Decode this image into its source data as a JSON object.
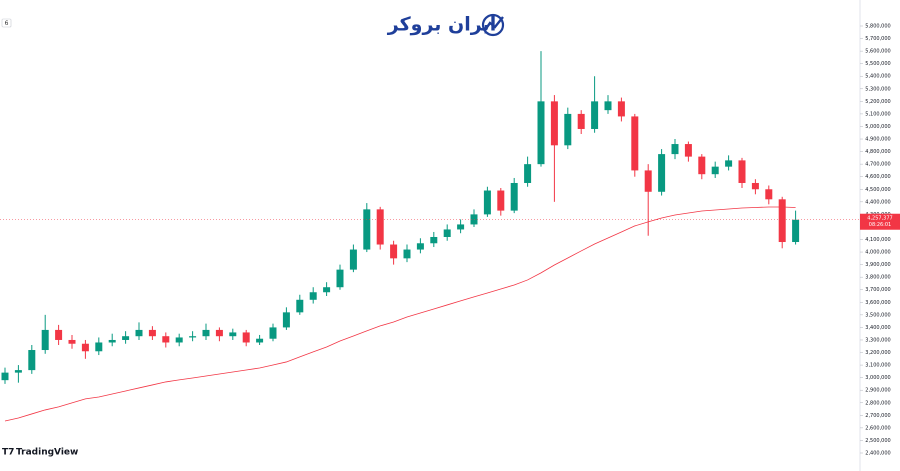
{
  "chart_data": {
    "type": "candlestick",
    "brand": "ایران بروکر",
    "watermark": "TradingView",
    "badge": "6",
    "ylim": [
      2400000,
      5800000
    ],
    "yticks": [
      {
        "value": 2400000,
        "label": "2,400,000"
      },
      {
        "value": 2500000,
        "label": "2,500,000"
      },
      {
        "value": 2600000,
        "label": "2,600,000"
      },
      {
        "value": 2700000,
        "label": "2,700,000"
      },
      {
        "value": 2800000,
        "label": "2,800,000"
      },
      {
        "value": 2900000,
        "label": "2,900,000"
      },
      {
        "value": 3000000,
        "label": "3,000,000"
      },
      {
        "value": 3100000,
        "label": "3,100,000"
      },
      {
        "value": 3200000,
        "label": "3,200,000"
      },
      {
        "value": 3300000,
        "label": "3,300,000"
      },
      {
        "value": 3400000,
        "label": "3,400,000"
      },
      {
        "value": 3500000,
        "label": "3,500,000"
      },
      {
        "value": 3600000,
        "label": "3,600,000"
      },
      {
        "value": 3700000,
        "label": "3,700,000"
      },
      {
        "value": 3800000,
        "label": "3,800,000"
      },
      {
        "value": 3900000,
        "label": "3,900,000"
      },
      {
        "value": 4000000,
        "label": "4,000,000"
      },
      {
        "value": 4100000,
        "label": "4,100,000"
      },
      {
        "value": 4200000,
        "label": "4,200,000"
      },
      {
        "value": 4300000,
        "label": "4,300,000"
      },
      {
        "value": 4400000,
        "label": "4,400,000"
      },
      {
        "value": 4500000,
        "label": "4,500,000"
      },
      {
        "value": 4600000,
        "label": "4,600,000"
      },
      {
        "value": 4700000,
        "label": "4,700,000"
      },
      {
        "value": 4800000,
        "label": "4,800,000"
      },
      {
        "value": 4900000,
        "label": "4,900,000"
      },
      {
        "value": 5000000,
        "label": "5,000,000"
      },
      {
        "value": 5100000,
        "label": "5,100,000"
      },
      {
        "value": 5200000,
        "label": "5,200,000"
      },
      {
        "value": 5300000,
        "label": "5,300,000"
      },
      {
        "value": 5400000,
        "label": "5,400,000"
      },
      {
        "value": 5500000,
        "label": "5,500,000"
      },
      {
        "value": 5600000,
        "label": "5,600,000"
      },
      {
        "value": 5700000,
        "label": "5,700,000"
      },
      {
        "value": 5800000,
        "label": "5,800,000"
      }
    ],
    "last_price": {
      "value": 4257377,
      "label": "4,257,377",
      "countdown": "08:26:01"
    },
    "series": [
      {
        "type": "candlestick",
        "color_up": "#089981",
        "color_down": "#f23645",
        "open": [
          2980000,
          3040000,
          3060000,
          3220000,
          3380000,
          3300000,
          3270000,
          3210000,
          3280000,
          3300000,
          3330000,
          3380000,
          3330000,
          3280000,
          3320000,
          3330000,
          3380000,
          3330000,
          3360000,
          3280000,
          3310000,
          3400000,
          3520000,
          3620000,
          3680000,
          3720000,
          3860000,
          4020000,
          4340000,
          4060000,
          3950000,
          4020000,
          4070000,
          4120000,
          4180000,
          4220000,
          4300000,
          4490000,
          4330000,
          4550000,
          4700000,
          5200000,
          4850000,
          5100000,
          4980000,
          5130000,
          5200000,
          5080000,
          4650000,
          4480000,
          4780000,
          4860000,
          4760000,
          4620000,
          4680000,
          4730000,
          4550000,
          4500000,
          4420000,
          4080000
        ],
        "high": [
          3080000,
          3100000,
          3260000,
          3500000,
          3420000,
          3340000,
          3300000,
          3320000,
          3350000,
          3370000,
          3440000,
          3410000,
          3360000,
          3350000,
          3370000,
          3430000,
          3400000,
          3390000,
          3380000,
          3340000,
          3430000,
          3560000,
          3660000,
          3720000,
          3760000,
          3900000,
          4060000,
          4390000,
          4360000,
          4090000,
          4060000,
          4110000,
          4160000,
          4220000,
          4260000,
          4340000,
          4520000,
          4510000,
          4590000,
          4760000,
          5600000,
          5250000,
          5150000,
          5130000,
          5400000,
          5250000,
          5230000,
          5100000,
          4700000,
          4820000,
          4900000,
          4880000,
          4780000,
          4720000,
          4770000,
          4750000,
          4580000,
          4530000,
          4440000,
          4330000
        ],
        "low": [
          2950000,
          2960000,
          3030000,
          3190000,
          3260000,
          3230000,
          3150000,
          3180000,
          3250000,
          3270000,
          3300000,
          3300000,
          3240000,
          3250000,
          3290000,
          3300000,
          3290000,
          3300000,
          3250000,
          3260000,
          3290000,
          3380000,
          3500000,
          3590000,
          3650000,
          3700000,
          3840000,
          4000000,
          4020000,
          3900000,
          3920000,
          3990000,
          4040000,
          4090000,
          4150000,
          4200000,
          4280000,
          4290000,
          4310000,
          4520000,
          4680000,
          4400000,
          4820000,
          4940000,
          4950000,
          5100000,
          5040000,
          4600000,
          4130000,
          4450000,
          4740000,
          4720000,
          4580000,
          4590000,
          4650000,
          4510000,
          4460000,
          4380000,
          4030000,
          4060000
        ],
        "close": [
          3040000,
          3060000,
          3220000,
          3380000,
          3300000,
          3270000,
          3210000,
          3280000,
          3300000,
          3330000,
          3380000,
          3330000,
          3280000,
          3320000,
          3330000,
          3380000,
          3330000,
          3360000,
          3280000,
          3310000,
          3400000,
          3520000,
          3620000,
          3680000,
          3720000,
          3860000,
          4020000,
          4340000,
          4060000,
          3950000,
          4020000,
          4070000,
          4120000,
          4180000,
          4220000,
          4300000,
          4490000,
          4330000,
          4550000,
          4700000,
          5200000,
          4850000,
          5100000,
          4980000,
          5200000,
          5200000,
          5080000,
          4650000,
          4480000,
          4780000,
          4860000,
          4760000,
          4620000,
          4680000,
          4730000,
          4550000,
          4500000,
          4420000,
          4080000,
          4257377
        ]
      },
      {
        "type": "line",
        "color": "#f23645",
        "values": [
          2655000,
          2679000,
          2711000,
          2743000,
          2767000,
          2799000,
          2831000,
          2846000,
          2870000,
          2894000,
          2918000,
          2942000,
          2966000,
          2982000,
          2997000,
          3013000,
          3029000,
          3045000,
          3061000,
          3077000,
          3101000,
          3125000,
          3165000,
          3205000,
          3244000,
          3292000,
          3332000,
          3372000,
          3412000,
          3443000,
          3483000,
          3515000,
          3547000,
          3579000,
          3611000,
          3643000,
          3674000,
          3706000,
          3738000,
          3778000,
          3834000,
          3897000,
          3953000,
          4009000,
          4064000,
          4112000,
          4160000,
          4208000,
          4240000,
          4271000,
          4295000,
          4311000,
          4327000,
          4335000,
          4343000,
          4351000,
          4355000,
          4359000,
          4359000,
          4355000
        ]
      }
    ]
  }
}
